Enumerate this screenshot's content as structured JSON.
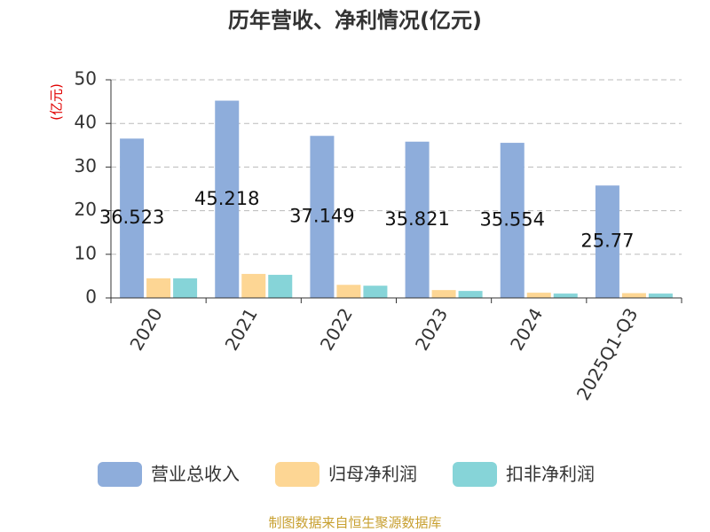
{
  "chart_data": {
    "type": "bar",
    "title": "历年营收、净利情况(亿元)",
    "y_label": "(亿元)",
    "source": "制图数据来自恒生聚源数据库",
    "categories": [
      "2020",
      "2021",
      "2022",
      "2023",
      "2024",
      "2025Q1-Q3"
    ],
    "series": [
      {
        "name": "营业总收入",
        "color": "#8eaddb",
        "values": [
          36.523,
          45.218,
          37.149,
          35.821,
          35.554,
          25.77
        ],
        "show_labels": true
      },
      {
        "name": "归母净利润",
        "color": "#fdd694",
        "values": [
          4.5,
          5.5,
          3.0,
          1.8,
          1.2,
          1.1
        ]
      },
      {
        "name": "扣非净利润",
        "color": "#86d4d8",
        "values": [
          4.5,
          5.3,
          2.8,
          1.6,
          1.0,
          1.0
        ]
      }
    ],
    "ylim": [
      0,
      50
    ],
    "yticks": [
      0,
      10,
      20,
      30,
      40,
      50
    ],
    "grid": true,
    "legend": "bottom"
  }
}
